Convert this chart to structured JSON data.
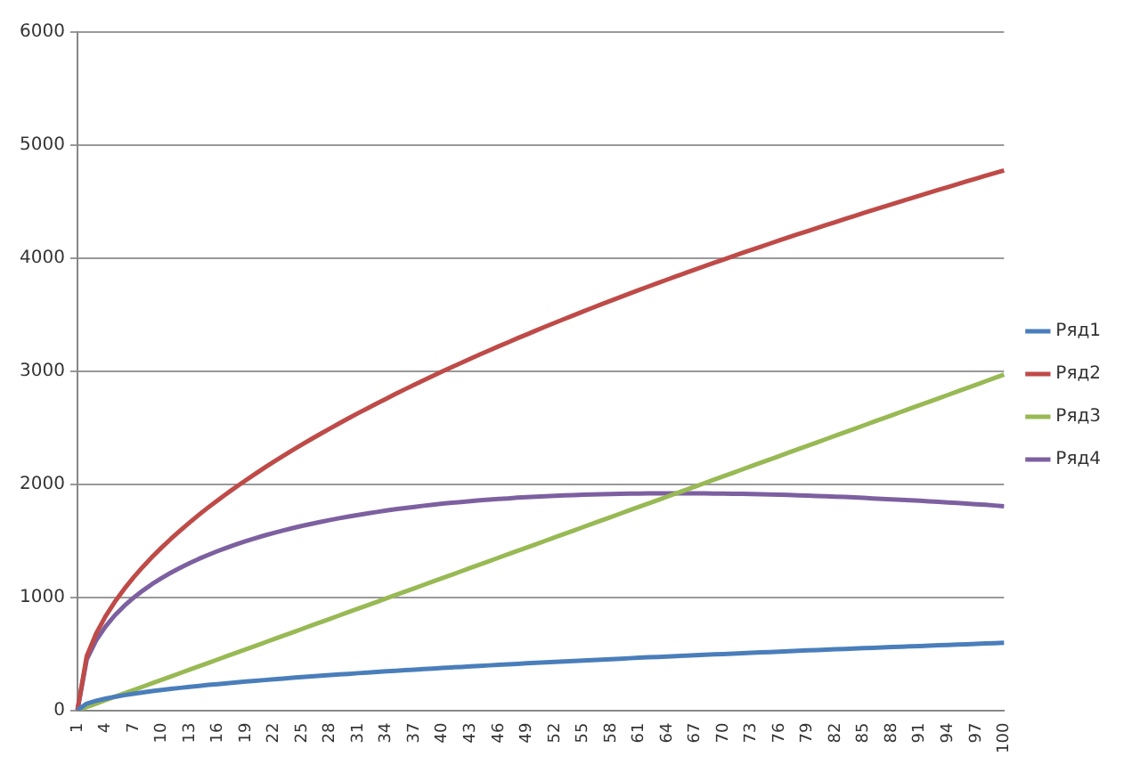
{
  "chart_data": {
    "type": "line",
    "categories": [
      "1",
      null,
      null,
      "4",
      null,
      null,
      "7",
      null,
      null,
      "10",
      null,
      null,
      "13",
      null,
      null,
      "16",
      null,
      null,
      "19",
      null,
      null,
      "22",
      null,
      null,
      "25",
      null,
      null,
      "28",
      null,
      null,
      "31",
      null,
      null,
      "34",
      null,
      null,
      "37",
      null,
      null,
      "40",
      null,
      null,
      "43",
      null,
      null,
      "46",
      null,
      null,
      "49",
      null,
      null,
      "52",
      null,
      null,
      "55",
      null,
      null,
      "58",
      null,
      null,
      "61",
      null,
      null,
      "64",
      null,
      null,
      "67",
      null,
      null,
      "70",
      null,
      null,
      "73",
      null,
      null,
      "76",
      null,
      null,
      "79",
      null,
      null,
      "82",
      null,
      null,
      "85",
      null,
      null,
      "88",
      null,
      null,
      "91",
      null,
      null,
      "94",
      null,
      null,
      "97",
      null,
      null,
      "100"
    ],
    "series": [
      {
        "name": "Ряд1",
        "color": "#4a7ebb",
        "values": [
          0,
          60,
          85,
          104,
          120,
          134,
          147,
          159,
          170,
          180,
          190,
          199,
          208,
          216,
          225,
          232,
          240,
          247,
          255,
          262,
          268,
          275,
          281,
          288,
          294,
          300,
          306,
          312,
          318,
          323,
          329,
          334,
          339,
          345,
          350,
          355,
          360,
          365,
          370,
          375,
          380,
          384,
          389,
          393,
          398,
          403,
          407,
          411,
          416,
          420,
          424,
          429,
          433,
          437,
          441,
          445,
          449,
          453,
          457,
          461,
          465,
          469,
          472,
          476,
          480,
          484,
          487,
          491,
          495,
          498,
          502,
          506,
          509,
          513,
          516,
          520,
          523,
          527,
          530,
          533,
          537,
          540,
          543,
          547,
          550,
          553,
          556,
          560,
          563,
          566,
          569,
          572,
          576,
          579,
          582,
          585,
          588,
          591,
          594,
          597
        ]
      },
      {
        "name": "Ряд2",
        "color": "#be4b48",
        "values": [
          0,
          480,
          679,
          831,
          960,
          1073,
          1176,
          1270,
          1358,
          1440,
          1518,
          1592,
          1663,
          1731,
          1796,
          1859,
          1920,
          1979,
          2036,
          2092,
          2147,
          2200,
          2251,
          2302,
          2352,
          2400,
          2447,
          2494,
          2540,
          2585,
          2629,
          2672,
          2715,
          2757,
          2799,
          2840,
          2880,
          2920,
          2959,
          2998,
          3036,
          3073,
          3111,
          3148,
          3184,
          3220,
          3255,
          3291,
          3325,
          3360,
          3394,
          3428,
          3461,
          3494,
          3527,
          3560,
          3592,
          3624,
          3656,
          3687,
          3718,
          3749,
          3780,
          3810,
          3840,
          3870,
          3900,
          3929,
          3958,
          3987,
          4016,
          4045,
          4073,
          4101,
          4129,
          4157,
          4185,
          4212,
          4239,
          4266,
          4293,
          4320,
          4347,
          4373,
          4399,
          4425,
          4451,
          4477,
          4503,
          4528,
          4554,
          4579,
          4604,
          4629,
          4654,
          4679,
          4703,
          4728,
          4752,
          4776
        ]
      },
      {
        "name": "Ряд3",
        "color": "#98b954",
        "values": [
          0,
          30,
          60,
          90,
          120,
          150,
          180,
          210,
          240,
          270,
          300,
          330,
          360,
          390,
          420,
          450,
          480,
          510,
          540,
          570,
          600,
          630,
          660,
          690,
          720,
          750,
          780,
          810,
          840,
          870,
          900,
          930,
          960,
          990,
          1020,
          1050,
          1080,
          1110,
          1140,
          1170,
          1200,
          1230,
          1260,
          1290,
          1320,
          1350,
          1380,
          1410,
          1440,
          1470,
          1500,
          1530,
          1560,
          1590,
          1620,
          1650,
          1680,
          1710,
          1740,
          1770,
          1800,
          1830,
          1860,
          1890,
          1920,
          1950,
          1980,
          2010,
          2040,
          2070,
          2100,
          2130,
          2160,
          2190,
          2220,
          2250,
          2280,
          2310,
          2340,
          2370,
          2400,
          2430,
          2460,
          2490,
          2520,
          2550,
          2580,
          2610,
          2640,
          2670,
          2700,
          2730,
          2760,
          2790,
          2820,
          2850,
          2880,
          2910,
          2940,
          2970
        ]
      },
      {
        "name": "Ряд4",
        "color": "#7d60a0",
        "values": [
          0,
          450,
          619,
          741,
          840,
          923,
          996,
          1060,
          1118,
          1170,
          1218,
          1262,
          1303,
          1341,
          1376,
          1409,
          1440,
          1469,
          1496,
          1522,
          1547,
          1570,
          1591,
          1612,
          1632,
          1650,
          1667,
          1684,
          1700,
          1715,
          1729,
          1742,
          1755,
          1767,
          1779,
          1790,
          1800,
          1810,
          1819,
          1828,
          1836,
          1843,
          1851,
          1858,
          1864,
          1870,
          1875,
          1881,
          1885,
          1890,
          1894,
          1898,
          1901,
          1904,
          1907,
          1910,
          1912,
          1914,
          1916,
          1917,
          1918,
          1919,
          1920,
          1920,
          1920,
          1920,
          1920,
          1919,
          1918,
          1917,
          1916,
          1915,
          1913,
          1911,
          1909,
          1907,
          1905,
          1902,
          1899,
          1896,
          1893,
          1890,
          1887,
          1883,
          1879,
          1875,
          1871,
          1867,
          1863,
          1858,
          1854,
          1849,
          1844,
          1839,
          1834,
          1829,
          1823,
          1818,
          1812,
          1806
        ]
      }
    ],
    "ylim": [
      0,
      6000
    ],
    "yticks": [
      0,
      1000,
      2000,
      3000,
      4000,
      5000,
      6000
    ],
    "grid": "y",
    "legend": "right",
    "marker": "none"
  }
}
